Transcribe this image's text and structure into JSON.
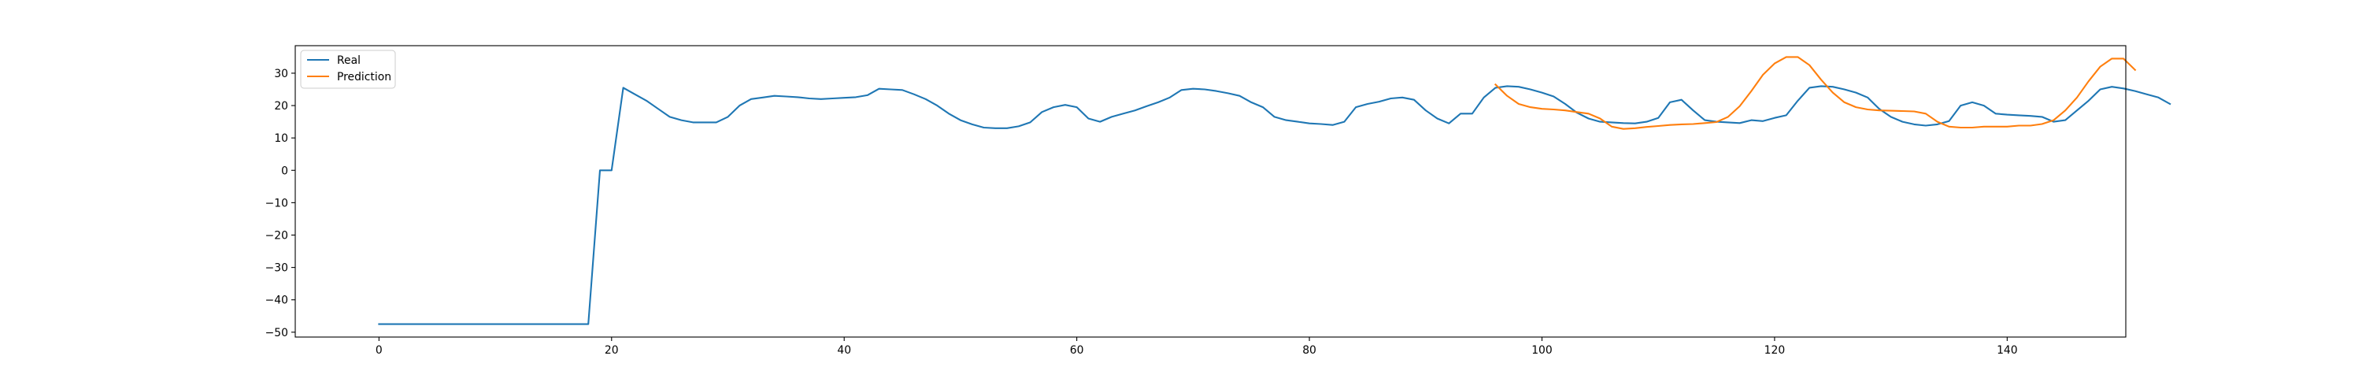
{
  "chart_data": {
    "type": "line",
    "title": "",
    "xlabel": "",
    "ylabel": "",
    "xlim": [
      -7.2,
      150.2
    ],
    "ylim": [
      -51.5,
      38.5
    ],
    "xticks": [
      0,
      20,
      40,
      60,
      80,
      100,
      120,
      140
    ],
    "yticks": [
      -50,
      -40,
      -30,
      -20,
      -10,
      0,
      10,
      20,
      30
    ],
    "grid": false,
    "legend_position": "top-left",
    "series": [
      {
        "name": "Real",
        "color": "#1f77b4",
        "x_start": 0,
        "values": [
          -47.5,
          -47.5,
          -47.5,
          -47.5,
          -47.5,
          -47.5,
          -47.5,
          -47.5,
          -47.5,
          -47.5,
          -47.5,
          -47.5,
          -47.5,
          -47.5,
          -47.5,
          -47.5,
          -47.5,
          -47.5,
          -47.5,
          0,
          0,
          25.5,
          23.5,
          21.5,
          19,
          16.5,
          15.5,
          14.8,
          14.8,
          14.8,
          16.5,
          20,
          22,
          22.5,
          23,
          22.8,
          22.6,
          22.2,
          22,
          22.2,
          22.4,
          22.6,
          23.2,
          25.2,
          25,
          24.8,
          23.5,
          22,
          20,
          17.5,
          15.5,
          14.2,
          13.2,
          13,
          13,
          13.6,
          14.8,
          18,
          19.5,
          20.2,
          19.5,
          16,
          15,
          16.5,
          17.5,
          18.5,
          19.8,
          21,
          22.5,
          24.8,
          25.2,
          25,
          24.5,
          23.8,
          23,
          21,
          19.5,
          16.5,
          15.5,
          15,
          14.5,
          14.3,
          14,
          15,
          19.5,
          20.5,
          21.2,
          22.2,
          22.5,
          21.8,
          18.5,
          16,
          14.5,
          17.5,
          17.5,
          22.5,
          25.5,
          26,
          25.8,
          25,
          24,
          22.8,
          20.5,
          17.8,
          16,
          15,
          14.8,
          14.6,
          14.5,
          15,
          16.2,
          21,
          21.8,
          18.5,
          15.5,
          15,
          14.8,
          14.6,
          15.5,
          15.2,
          16.2,
          17,
          21.5,
          25.5,
          26,
          25.8,
          25,
          24,
          22.5,
          19,
          16.5,
          15,
          14.2,
          13.8,
          14.2,
          15.2,
          20,
          21,
          20,
          17.5,
          17.2,
          17,
          16.8,
          16.5,
          15,
          15.5,
          18.5,
          21.5,
          25,
          25.8,
          25.3,
          24.5,
          23.5,
          22.5,
          20.5
        ]
      },
      {
        "name": "Prediction",
        "color": "#ff7f0e",
        "x_start": 96,
        "values": [
          26.5,
          23,
          20.5,
          19.5,
          19,
          18.8,
          18.5,
          18,
          17.5,
          16,
          13.5,
          12.8,
          13,
          13.4,
          13.7,
          14,
          14.2,
          14.3,
          14.6,
          14.9,
          16.5,
          19.8,
          24.5,
          29.5,
          33,
          35,
          35,
          32.5,
          28,
          24,
          21,
          19.5,
          18.8,
          18.5,
          18.4,
          18.3,
          18.2,
          17.5,
          15,
          13.5,
          13.2,
          13.2,
          13.5,
          13.5,
          13.5,
          13.8,
          13.8,
          14.3,
          15.5,
          18.5,
          22.5,
          27.5,
          32,
          34.5,
          34.5,
          31
        ]
      }
    ]
  }
}
